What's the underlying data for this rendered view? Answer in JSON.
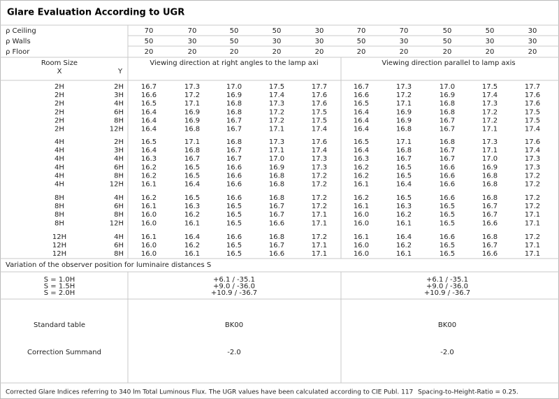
{
  "title": "Glare Evaluation According to UGR",
  "reflectances": [
    {
      "label": "ρ Ceiling",
      "values": [
        "70",
        "70",
        "50",
        "50",
        "30",
        "70",
        "70",
        "50",
        "50",
        "30"
      ]
    },
    {
      "label": "ρ Walls",
      "values": [
        "50",
        "30",
        "50",
        "30",
        "30",
        "50",
        "30",
        "50",
        "30",
        "30"
      ]
    },
    {
      "label": "ρ Floor",
      "values": [
        "20",
        "20",
        "20",
        "20",
        "20",
        "20",
        "20",
        "20",
        "20",
        "20"
      ]
    }
  ],
  "header": {
    "room_size": "Room Size",
    "x": "X",
    "y": "Y",
    "view_right_angles": "Viewing direction at right angles to the lamp axi",
    "view_parallel": "Viewing direction parallel to lamp axis"
  },
  "groups": [
    [
      {
        "x": "2H",
        "y": "2H",
        "values": [
          "16.7",
          "17.3",
          "17.0",
          "17.5",
          "17.7",
          "16.7",
          "17.3",
          "17.0",
          "17.5",
          "17.7"
        ]
      },
      {
        "x": "2H",
        "y": "3H",
        "values": [
          "16.6",
          "17.2",
          "16.9",
          "17.4",
          "17.6",
          "16.6",
          "17.2",
          "16.9",
          "17.4",
          "17.6"
        ]
      },
      {
        "x": "2H",
        "y": "4H",
        "values": [
          "16.5",
          "17.1",
          "16.8",
          "17.3",
          "17.6",
          "16.5",
          "17.1",
          "16.8",
          "17.3",
          "17.6"
        ]
      },
      {
        "x": "2H",
        "y": "6H",
        "values": [
          "16.4",
          "16.9",
          "16.8",
          "17.2",
          "17.5",
          "16.4",
          "16.9",
          "16.8",
          "17.2",
          "17.5"
        ]
      },
      {
        "x": "2H",
        "y": "8H",
        "values": [
          "16.4",
          "16.9",
          "16.7",
          "17.2",
          "17.5",
          "16.4",
          "16.9",
          "16.7",
          "17.2",
          "17.5"
        ]
      },
      {
        "x": "2H",
        "y": "12H",
        "values": [
          "16.4",
          "16.8",
          "16.7",
          "17.1",
          "17.4",
          "16.4",
          "16.8",
          "16.7",
          "17.1",
          "17.4"
        ]
      }
    ],
    [
      {
        "x": "4H",
        "y": "2H",
        "values": [
          "16.5",
          "17.1",
          "16.8",
          "17.3",
          "17.6",
          "16.5",
          "17.1",
          "16.8",
          "17.3",
          "17.6"
        ]
      },
      {
        "x": "4H",
        "y": "3H",
        "values": [
          "16.4",
          "16.8",
          "16.7",
          "17.1",
          "17.4",
          "16.4",
          "16.8",
          "16.7",
          "17.1",
          "17.4"
        ]
      },
      {
        "x": "4H",
        "y": "4H",
        "values": [
          "16.3",
          "16.7",
          "16.7",
          "17.0",
          "17.3",
          "16.3",
          "16.7",
          "16.7",
          "17.0",
          "17.3"
        ]
      },
      {
        "x": "4H",
        "y": "6H",
        "values": [
          "16.2",
          "16.5",
          "16.6",
          "16.9",
          "17.3",
          "16.2",
          "16.5",
          "16.6",
          "16.9",
          "17.3"
        ]
      },
      {
        "x": "4H",
        "y": "8H",
        "values": [
          "16.2",
          "16.5",
          "16.6",
          "16.8",
          "17.2",
          "16.2",
          "16.5",
          "16.6",
          "16.8",
          "17.2"
        ]
      },
      {
        "x": "4H",
        "y": "12H",
        "values": [
          "16.1",
          "16.4",
          "16.6",
          "16.8",
          "17.2",
          "16.1",
          "16.4",
          "16.6",
          "16.8",
          "17.2"
        ]
      }
    ],
    [
      {
        "x": "8H",
        "y": "4H",
        "values": [
          "16.2",
          "16.5",
          "16.6",
          "16.8",
          "17.2",
          "16.2",
          "16.5",
          "16.6",
          "16.8",
          "17.2"
        ]
      },
      {
        "x": "8H",
        "y": "6H",
        "values": [
          "16.1",
          "16.3",
          "16.5",
          "16.7",
          "17.2",
          "16.1",
          "16.3",
          "16.5",
          "16.7",
          "17.2"
        ]
      },
      {
        "x": "8H",
        "y": "8H",
        "values": [
          "16.0",
          "16.2",
          "16.5",
          "16.7",
          "17.1",
          "16.0",
          "16.2",
          "16.5",
          "16.7",
          "17.1"
        ]
      },
      {
        "x": "8H",
        "y": "12H",
        "values": [
          "16.0",
          "16.1",
          "16.5",
          "16.6",
          "17.1",
          "16.0",
          "16.1",
          "16.5",
          "16.6",
          "17.1"
        ]
      }
    ],
    [
      {
        "x": "12H",
        "y": "4H",
        "values": [
          "16.1",
          "16.4",
          "16.6",
          "16.8",
          "17.2",
          "16.1",
          "16.4",
          "16.6",
          "16.8",
          "17.2"
        ]
      },
      {
        "x": "12H",
        "y": "6H",
        "values": [
          "16.0",
          "16.2",
          "16.5",
          "16.7",
          "17.1",
          "16.0",
          "16.2",
          "16.5",
          "16.7",
          "17.1"
        ]
      },
      {
        "x": "12H",
        "y": "8H",
        "values": [
          "16.0",
          "16.1",
          "16.5",
          "16.6",
          "17.1",
          "16.0",
          "16.1",
          "16.5",
          "16.6",
          "17.1"
        ]
      }
    ]
  ],
  "variation": {
    "label": "Variation of the observer position for luminaire distances S",
    "rows": [
      {
        "s": "S = 1.0H",
        "left": "+6.1 / -35.1",
        "right": "+6.1 / -35.1"
      },
      {
        "s": "S = 1.5H",
        "left": "+9.0 / -36.0",
        "right": "+9.0 / -36.0"
      },
      {
        "s": "S = 2.0H",
        "left": "+10.9 / -36.7",
        "right": "+10.9 / -36.7"
      }
    ]
  },
  "standard_table": {
    "label": "Standard table",
    "left": "BK00",
    "right": "BK00"
  },
  "correction": {
    "label": "Correction Summand",
    "left": "-2.0",
    "right": "-2.0"
  },
  "footer": {
    "note": "Corrected Glare Indices referring to 340 lm Total Luminous Flux. The UGR values have been calculated according to CIE Publ. 117",
    "ratio": "Spacing-to-Height-Ratio = 0.25."
  }
}
